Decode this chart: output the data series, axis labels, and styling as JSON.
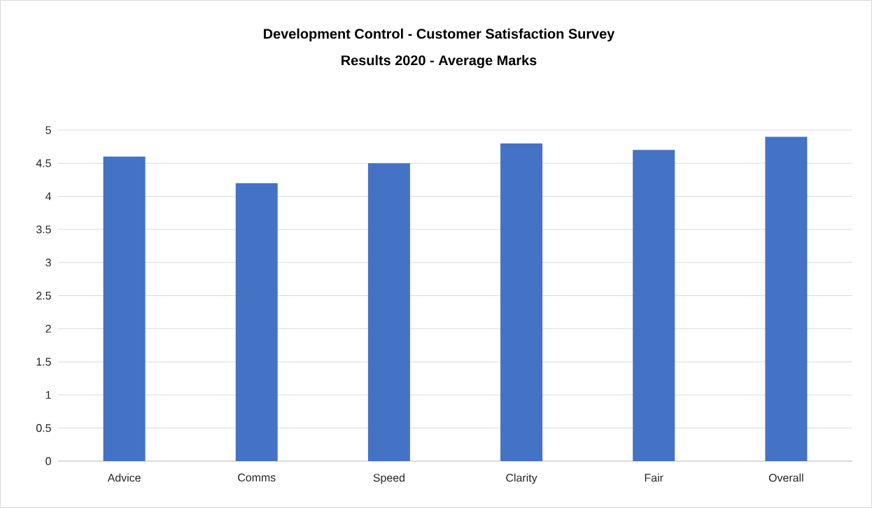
{
  "chart_data": {
    "type": "bar",
    "title": "Development Control - Customer Satisfaction Survey",
    "subtitle": "Results 2020 - Average Marks",
    "categories": [
      "Advice",
      "Comms",
      "Speed",
      "Clarity",
      "Fair",
      "Overall"
    ],
    "values": [
      4.6,
      4.2,
      4.5,
      4.8,
      4.7,
      4.9
    ],
    "color": "#4472c4",
    "ylim": [
      0,
      5
    ],
    "yticks": [
      0,
      0.5,
      1,
      1.5,
      2,
      2.5,
      3,
      3.5,
      4,
      4.5,
      5
    ],
    "grid": "y"
  }
}
